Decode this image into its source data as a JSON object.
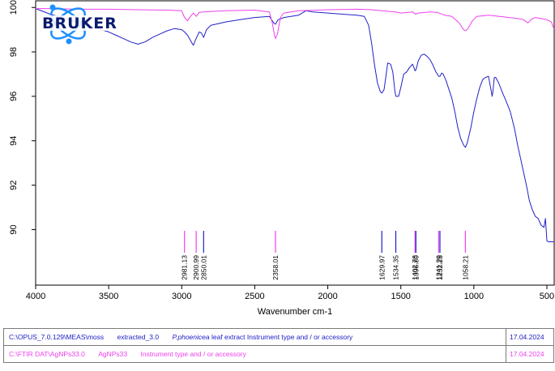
{
  "logo": {
    "text": "BRUKER",
    "color": "#0a1a6e",
    "atom_color": "#1e90ff"
  },
  "chart_data": {
    "type": "line",
    "xlabel": "Wavenumber cm-1",
    "ylabel": "",
    "xlim": [
      4000,
      450
    ],
    "ylim": [
      87.5,
      100.3
    ],
    "x_ticks": [
      4000,
      3500,
      3000,
      2500,
      2000,
      1500,
      1000,
      500
    ],
    "y_ticks": [
      90,
      92,
      94,
      96,
      98,
      100
    ],
    "grid": false,
    "series": [
      {
        "color": "#2020c8",
        "points": [
          [
            4000,
            99.95
          ],
          [
            3900,
            99.7
          ],
          [
            3800,
            99.5
          ],
          [
            3700,
            99.3
          ],
          [
            3600,
            99.1
          ],
          [
            3500,
            98.9
          ],
          [
            3450,
            98.75
          ],
          [
            3400,
            98.6
          ],
          [
            3350,
            98.45
          ],
          [
            3300,
            98.35
          ],
          [
            3250,
            98.45
          ],
          [
            3200,
            98.65
          ],
          [
            3150,
            98.8
          ],
          [
            3100,
            98.95
          ],
          [
            3050,
            99.05
          ],
          [
            3000,
            99.0
          ],
          [
            2981,
            98.9
          ],
          [
            2960,
            98.75
          ],
          [
            2930,
            98.4
          ],
          [
            2920,
            98.3
          ],
          [
            2905,
            98.55
          ],
          [
            2880,
            98.9
          ],
          [
            2865,
            98.85
          ],
          [
            2850,
            98.65
          ],
          [
            2830,
            99.0
          ],
          [
            2800,
            99.2
          ],
          [
            2700,
            99.35
          ],
          [
            2600,
            99.45
          ],
          [
            2500,
            99.55
          ],
          [
            2400,
            99.6
          ],
          [
            2370,
            99.3
          ],
          [
            2358,
            99.25
          ],
          [
            2340,
            99.45
          ],
          [
            2300,
            99.55
          ],
          [
            2200,
            99.65
          ],
          [
            2150,
            99.85
          ],
          [
            2100,
            99.8
          ],
          [
            2000,
            99.75
          ],
          [
            1900,
            99.7
          ],
          [
            1800,
            99.65
          ],
          [
            1750,
            99.6
          ],
          [
            1720,
            99.2
          ],
          [
            1700,
            98.4
          ],
          [
            1680,
            97.4
          ],
          [
            1660,
            96.6
          ],
          [
            1640,
            96.2
          ],
          [
            1630,
            96.15
          ],
          [
            1615,
            96.3
          ],
          [
            1600,
            97.0
          ],
          [
            1590,
            97.5
          ],
          [
            1570,
            97.45
          ],
          [
            1555,
            97.1
          ],
          [
            1540,
            96.2
          ],
          [
            1534,
            96.0
          ],
          [
            1515,
            96.0
          ],
          [
            1500,
            96.4
          ],
          [
            1480,
            97.0
          ],
          [
            1460,
            97.1
          ],
          [
            1440,
            97.3
          ],
          [
            1420,
            97.45
          ],
          [
            1410,
            97.3
          ],
          [
            1403,
            97.15
          ],
          [
            1396,
            97.2
          ],
          [
            1380,
            97.6
          ],
          [
            1360,
            97.85
          ],
          [
            1340,
            97.9
          ],
          [
            1320,
            97.8
          ],
          [
            1300,
            97.65
          ],
          [
            1280,
            97.4
          ],
          [
            1260,
            97.1
          ],
          [
            1250,
            97.0
          ],
          [
            1241,
            96.9
          ],
          [
            1232,
            96.9
          ],
          [
            1220,
            97.05
          ],
          [
            1210,
            97.0
          ],
          [
            1190,
            96.7
          ],
          [
            1170,
            96.3
          ],
          [
            1150,
            95.9
          ],
          [
            1130,
            95.3
          ],
          [
            1110,
            94.6
          ],
          [
            1090,
            94.1
          ],
          [
            1070,
            93.8
          ],
          [
            1058,
            93.7
          ],
          [
            1045,
            93.9
          ],
          [
            1020,
            94.6
          ],
          [
            1000,
            95.3
          ],
          [
            980,
            95.9
          ],
          [
            960,
            96.4
          ],
          [
            940,
            96.75
          ],
          [
            920,
            96.85
          ],
          [
            900,
            96.9
          ],
          [
            890,
            96.55
          ],
          [
            880,
            96.2
          ],
          [
            875,
            96.0
          ],
          [
            870,
            96.2
          ],
          [
            860,
            96.85
          ],
          [
            850,
            96.85
          ],
          [
            830,
            96.6
          ],
          [
            800,
            96.1
          ],
          [
            780,
            95.8
          ],
          [
            750,
            95.3
          ],
          [
            720,
            94.5
          ],
          [
            700,
            93.8
          ],
          [
            680,
            93.2
          ],
          [
            660,
            92.6
          ],
          [
            640,
            92.0
          ],
          [
            620,
            91.3
          ],
          [
            600,
            90.9
          ],
          [
            580,
            90.6
          ],
          [
            560,
            90.5
          ],
          [
            540,
            90.2
          ],
          [
            520,
            90.1
          ],
          [
            510,
            90.5
          ],
          [
            500,
            89.5
          ],
          [
            490,
            89.45
          ],
          [
            470,
            89.45
          ],
          [
            450,
            89.45
          ]
        ]
      },
      {
        "color": "#ee40ee",
        "points": [
          [
            4000,
            99.95
          ],
          [
            3900,
            99.95
          ],
          [
            3700,
            99.92
          ],
          [
            3500,
            99.92
          ],
          [
            3300,
            99.9
          ],
          [
            3100,
            99.88
          ],
          [
            3000,
            99.85
          ],
          [
            2981,
            99.55
          ],
          [
            2960,
            99.4
          ],
          [
            2940,
            99.6
          ],
          [
            2920,
            99.75
          ],
          [
            2900,
            99.6
          ],
          [
            2880,
            99.78
          ],
          [
            2850,
            99.8
          ],
          [
            2700,
            99.85
          ],
          [
            2500,
            99.88
          ],
          [
            2400,
            99.8
          ],
          [
            2380,
            99.3
          ],
          [
            2365,
            98.75
          ],
          [
            2358,
            98.6
          ],
          [
            2345,
            98.8
          ],
          [
            2330,
            99.35
          ],
          [
            2320,
            99.6
          ],
          [
            2300,
            99.75
          ],
          [
            2200,
            99.85
          ],
          [
            2000,
            99.9
          ],
          [
            1800,
            99.92
          ],
          [
            1700,
            99.9
          ],
          [
            1630,
            99.85
          ],
          [
            1540,
            99.8
          ],
          [
            1500,
            99.75
          ],
          [
            1420,
            99.8
          ],
          [
            1400,
            99.7
          ],
          [
            1380,
            99.75
          ],
          [
            1300,
            99.8
          ],
          [
            1250,
            99.78
          ],
          [
            1200,
            99.65
          ],
          [
            1150,
            99.6
          ],
          [
            1100,
            99.3
          ],
          [
            1070,
            99.0
          ],
          [
            1058,
            98.95
          ],
          [
            1040,
            99.05
          ],
          [
            1010,
            99.4
          ],
          [
            980,
            99.6
          ],
          [
            900,
            99.65
          ],
          [
            800,
            99.58
          ],
          [
            700,
            99.5
          ],
          [
            660,
            99.45
          ],
          [
            630,
            99.3
          ],
          [
            610,
            99.45
          ],
          [
            580,
            99.55
          ],
          [
            540,
            99.5
          ],
          [
            500,
            99.45
          ],
          [
            470,
            99.35
          ],
          [
            455,
            99.1
          ],
          [
            450,
            99.05
          ]
        ]
      }
    ],
    "peak_labels": [
      {
        "value": 2981.13,
        "label": "2981.13",
        "color": "#ee40ee"
      },
      {
        "value": 2900.99,
        "label": "2900.99",
        "color": "#ee40ee"
      },
      {
        "value": 2850.01,
        "label": "2850.01",
        "color": "#2020c8"
      },
      {
        "value": 2358.01,
        "label": "2358.01",
        "color": "#ee40ee"
      },
      {
        "value": 1629.97,
        "label": "1629.97",
        "color": "#2020c8"
      },
      {
        "value": 1534.35,
        "label": "1534.35",
        "color": "#2020c8"
      },
      {
        "value": 1402.78,
        "label": "1402.78",
        "color": "#ee40ee"
      },
      {
        "value": 1396.8,
        "label": "1396.80",
        "color": "#2020c8"
      },
      {
        "value": 1241.29,
        "label": "1241.29",
        "color": "#ee40ee"
      },
      {
        "value": 1232.25,
        "label": "1232.25",
        "color": "#2020c8"
      },
      {
        "value": 1058.21,
        "label": "1058.21",
        "color": "#ee40ee"
      }
    ]
  },
  "info": [
    {
      "color": "#2020c8",
      "path": "C:\\OPUS_7.0.129\\MEAS\\moss",
      "name": "extracted_3.0",
      "desc_italic": "P.phoenicea",
      "desc_rest": " leaf extract  Instrument type and / or accessory",
      "date": "17.04.2024"
    },
    {
      "color": "#ee40ee",
      "path": "C:\\FTIR DAT\\AgNPs33.0",
      "name": "AgNPs33",
      "desc_italic": "",
      "desc_rest": "Instrument type and / or accessory",
      "date": "17.04.2024"
    }
  ]
}
